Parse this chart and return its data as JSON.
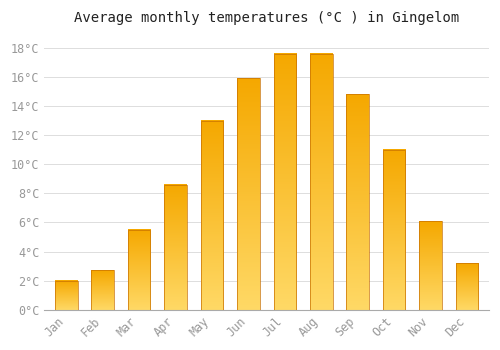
{
  "title": "Average monthly temperatures (°C ) in Gingelom",
  "months": [
    "Jan",
    "Feb",
    "Mar",
    "Apr",
    "May",
    "Jun",
    "Jul",
    "Aug",
    "Sep",
    "Oct",
    "Nov",
    "Dec"
  ],
  "values": [
    2.0,
    2.7,
    5.5,
    8.6,
    13.0,
    15.9,
    17.6,
    17.6,
    14.8,
    11.0,
    6.1,
    3.2
  ],
  "bar_color_dark": "#F5A800",
  "bar_color_light": "#FFD966",
  "background_color": "#FFFFFF",
  "grid_color": "#DDDDDD",
  "text_color": "#999999",
  "ylim": [
    0,
    19
  ],
  "yticks": [
    0,
    2,
    4,
    6,
    8,
    10,
    12,
    14,
    16,
    18
  ],
  "ytick_labels": [
    "0°C",
    "2°C",
    "4°C",
    "6°C",
    "8°C",
    "10°C",
    "12°C",
    "14°C",
    "16°C",
    "18°C"
  ],
  "title_fontsize": 10,
  "tick_fontsize": 8.5
}
